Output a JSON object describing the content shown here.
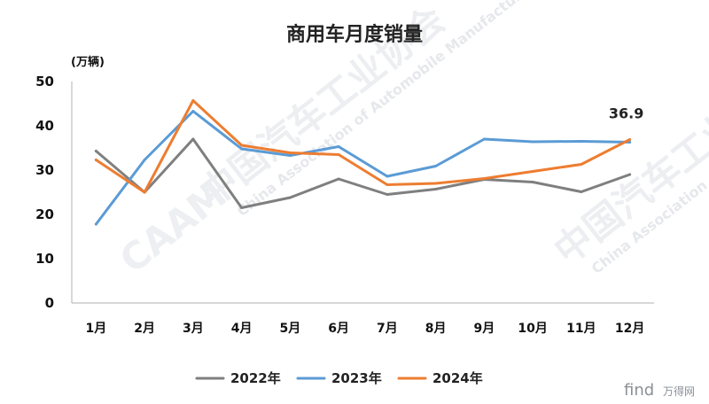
{
  "chart_data": {
    "type": "line",
    "title": "商用车月度销量",
    "ylabel": "(万辆)",
    "xlabel": "",
    "categories": [
      "1月",
      "2月",
      "3月",
      "4月",
      "5月",
      "6月",
      "7月",
      "8月",
      "9月",
      "10月",
      "11月",
      "12月"
    ],
    "ylim": [
      0,
      50
    ],
    "yticks": [
      0,
      10,
      20,
      30,
      40,
      50
    ],
    "grid": false,
    "legend_position": "bottom",
    "series": [
      {
        "name": "2022年",
        "color": "#7f7f7f",
        "values": [
          34.3,
          25.0,
          37.0,
          21.5,
          23.8,
          28.0,
          24.5,
          25.7,
          27.9,
          27.3,
          25.1,
          29.0
        ]
      },
      {
        "name": "2023年",
        "color": "#5b9bd5",
        "values": [
          17.8,
          32.3,
          43.3,
          34.8,
          33.3,
          35.3,
          28.6,
          30.9,
          37.0,
          36.4,
          36.5,
          36.3
        ]
      },
      {
        "name": "2024年",
        "color": "#ed7d31",
        "values": [
          32.3,
          25.0,
          45.7,
          35.6,
          33.9,
          33.5,
          26.7,
          27.0,
          28.1,
          29.7,
          31.3,
          36.9
        ]
      }
    ],
    "annotations": [
      {
        "series": "2024年",
        "category": "12月",
        "text": "36.9"
      }
    ]
  },
  "watermark": {
    "cn": "中国汽车工业协会",
    "en": "China Association of Automobile Manufacturers",
    "logo": "CAAM"
  },
  "brand": {
    "text": "find",
    "cn": "万得网"
  }
}
